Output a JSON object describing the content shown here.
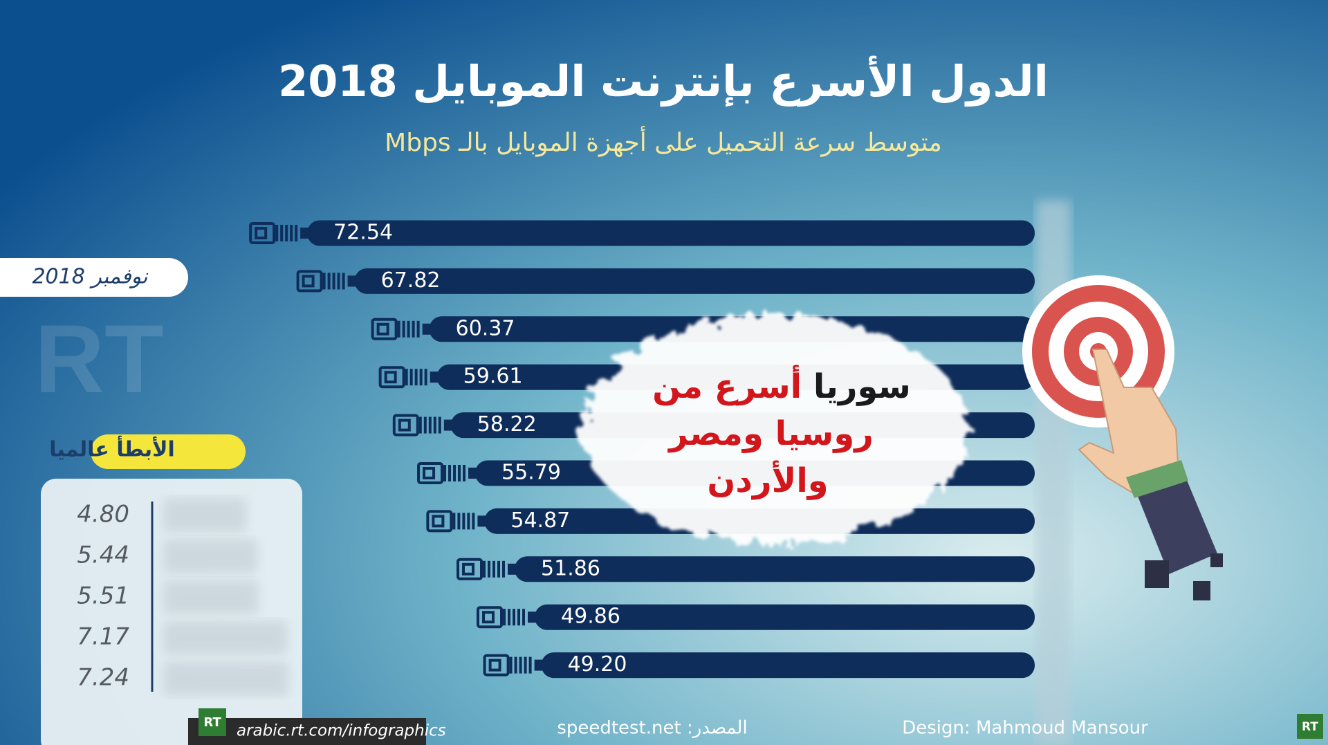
{
  "chart_data": [
    {
      "type": "hbar",
      "title": "الدول الأسرع بإنترنت الموبايل 2018",
      "subtitle": "متوسط سرعة التحميل على أجهزة الموبايل بالـ Mbps",
      "values": [
        72.54,
        67.82,
        60.37,
        59.61,
        58.22,
        55.79,
        54.87,
        51.86,
        49.86,
        49.2
      ],
      "value_labels": [
        "72.54",
        "67.82",
        "60.37",
        "59.61",
        "58.22",
        "55.79",
        "54.87",
        "51.86",
        "49.86",
        "49.20"
      ],
      "color": "#0f2d5a"
    },
    {
      "type": "hbar",
      "title": "الأبطأ عالميا",
      "values": [
        4.8,
        5.44,
        5.51,
        7.17,
        7.24
      ],
      "value_labels": [
        "4.80",
        "5.44",
        "5.51",
        "7.17",
        "7.24"
      ],
      "color": "#c9d3da"
    }
  ],
  "date_badge": "نوفمبر 2018",
  "callout": {
    "line1_black": "سوريا",
    "line1_red": "أسرع من",
    "line2": "روسيا ومصر",
    "line3": "والأردن"
  },
  "source": "المصدر: speedtest.net",
  "credit": "Design: Mahmoud Mansour",
  "website": "arabic.rt.com/infographics",
  "logo": "RT"
}
